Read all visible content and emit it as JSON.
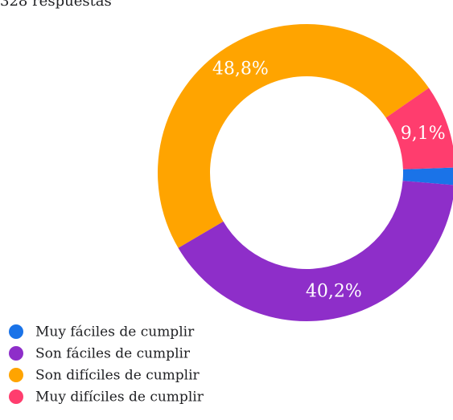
{
  "chart_data": {
    "type": "donut",
    "title": "328 respuestas",
    "categories": [
      "Muy fáciles de cumplir",
      "Son fáciles de cumplir",
      "Son difíciles de cumplir",
      "Muy difíciles de cumplir"
    ],
    "values": [
      1.9,
      40.2,
      48.8,
      9.1
    ],
    "value_labels": [
      null,
      "40,2%",
      "48,8%",
      "9,1%"
    ],
    "colors": [
      "#1a73e8",
      "#8e2ec9",
      "#ffa400",
      "#ff3d6e"
    ],
    "start_angle": 88
  }
}
